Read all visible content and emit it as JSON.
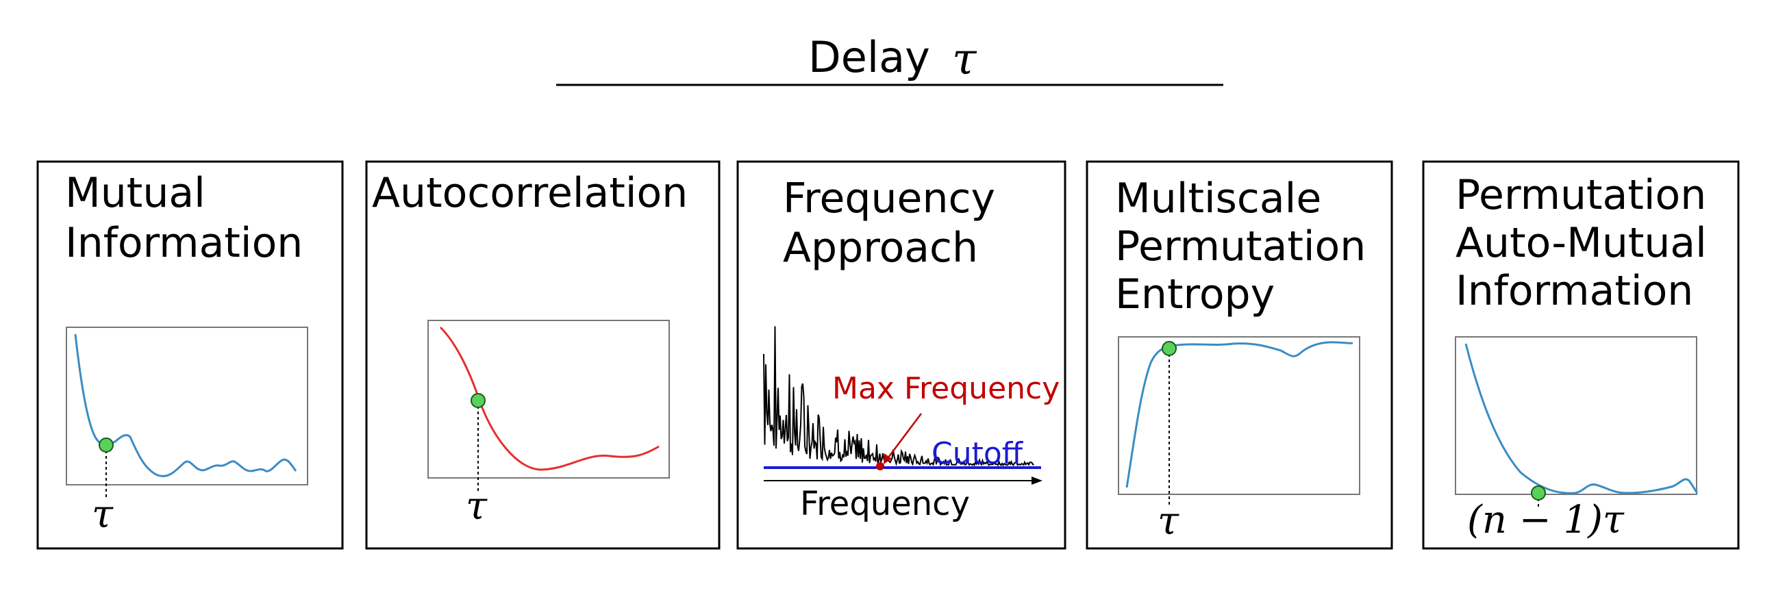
{
  "title": {
    "text": "Delay",
    "symbol": "τ"
  },
  "panels": [
    {
      "id": "mutual-information",
      "heading": [
        "Mutual",
        "Information"
      ],
      "marker_label": "τ",
      "curve_color": "#3a8cc4"
    },
    {
      "id": "autocorrelation",
      "heading": [
        "Autocorrelation"
      ],
      "marker_label": "τ",
      "curve_color": "#e53030"
    },
    {
      "id": "frequency-approach",
      "heading": [
        "Frequency",
        "Approach"
      ],
      "max_frequency_label": "Max Frequency",
      "cutoff_label": "Cutoff",
      "axis_label": "Frequency",
      "max_color": "#c00000",
      "cutoff_color": "#1a1ad6"
    },
    {
      "id": "multiscale-permutation-entropy",
      "heading": [
        "Multiscale",
        "Permutation",
        "Entropy"
      ],
      "marker_label": "τ",
      "curve_color": "#3a8cc4"
    },
    {
      "id": "permutation-auto-mutual-information",
      "heading": [
        "Permutation",
        "Auto-Mutual",
        "Information"
      ],
      "marker_label": "(n − 1)τ",
      "curve_color": "#3a8cc4"
    }
  ],
  "marker_color": "#59d15b"
}
